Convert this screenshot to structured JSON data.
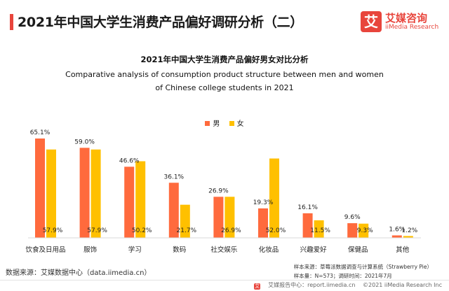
{
  "header": {
    "title": "2021年中国大学生消费产品偏好调研分析（二）"
  },
  "logo": {
    "mark": "艾",
    "name": "艾媒咨询",
    "name_en": "iiMedia Research"
  },
  "colors": {
    "male": "#FF6A3D",
    "female": "#FFC000",
    "accent": "#E8453C",
    "brand": "#E8453C"
  },
  "chart_data": {
    "type": "bar",
    "title": "2021年中国大学生消费产品偏好男女对比分析",
    "subtitle_lines": [
      "Comparative analysis of consumption product structure between men and women",
      "of Chinese college students in 2021"
    ],
    "categories": [
      "饮食及日用品",
      "服饰",
      "学习",
      "数码",
      "社交娱乐",
      "化妆品",
      "兴趣爱好",
      "保健品",
      "其他"
    ],
    "series": [
      {
        "name": "男",
        "values": [
          65.1,
          59.0,
          46.6,
          36.1,
          26.9,
          19.3,
          16.1,
          9.6,
          1.6
        ],
        "labels": [
          "65.1%",
          "59.0%",
          "46.6%",
          "36.1%",
          "26.9%",
          "19.3%",
          "16.1%",
          "9.6%",
          "1.6%"
        ]
      },
      {
        "name": "女",
        "values": [
          57.9,
          57.9,
          50.2,
          21.7,
          26.9,
          52.0,
          11.5,
          9.3,
          1.2
        ],
        "labels": [
          "57.9%",
          "57.9%",
          "50.2%",
          "21.7%",
          "26.9%",
          "52.0%",
          "11.5%",
          "9.3%",
          "1.2%"
        ]
      }
    ],
    "legend_position": "top-center",
    "grid": false,
    "ylim": [
      0,
      70
    ]
  },
  "footer": {
    "source": "数据来源：艾媒数据中心（data.iimedia.cn）",
    "sample_line1": "样本来源：草莓派数据调查与计算系统（Strawberry Pie）",
    "sample_line2": "样本量：N=573；调研时间：2021年7月"
  },
  "bottom": {
    "report_site": "艾媒报告中心：report.iimedia.cn",
    "copyright": "©2021  iiMedia Research  Inc"
  }
}
